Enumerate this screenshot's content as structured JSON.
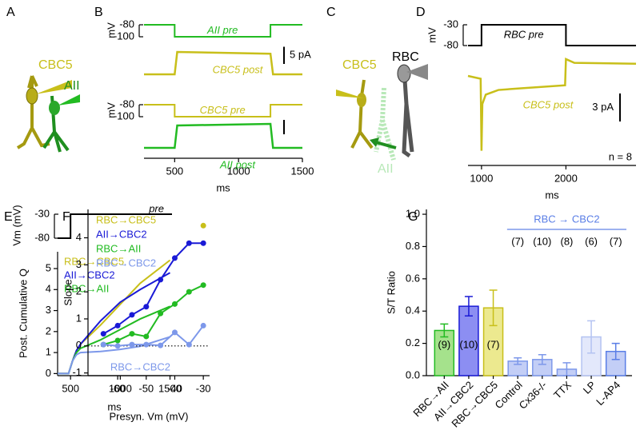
{
  "panel_labels": [
    "A",
    "B",
    "C",
    "D",
    "E",
    "F",
    "G"
  ],
  "diagram_A": {
    "labels": [
      "CBC5",
      "AII"
    ]
  },
  "diagram_C": {
    "labels": [
      "CBC5",
      "RBC",
      "AII"
    ]
  },
  "chart_data": [
    {
      "type": "trace",
      "ylabel": "mV",
      "xlim": [
        260,
        1500
      ],
      "stim": {
        "name": "AII pre",
        "color": "#22bb22",
        "x": [
          260,
          500,
          500,
          1250,
          1250,
          1500
        ],
        "values": [
          -80,
          -80,
          -100,
          -100,
          -80,
          -80
        ],
        "yticks": [
          -80,
          -100
        ]
      },
      "response": {
        "name": "CBC5 post",
        "color": "#c8bf1a",
        "x": [
          260,
          500,
          520,
          1250,
          1270,
          1500
        ],
        "values": [
          0,
          0,
          6.5,
          6,
          0,
          0
        ]
      },
      "scalebar": {
        "value": 5,
        "label": "5 pA"
      }
    },
    {
      "type": "trace",
      "ylabel": "mV",
      "xlim": [
        260,
        1500
      ],
      "xticks": [
        500,
        1000,
        1500
      ],
      "xlabel": "ms",
      "stim": {
        "name": "CBC5 pre",
        "color": "#c8bf1a",
        "x": [
          260,
          500,
          500,
          1250,
          1250,
          1500
        ],
        "values": [
          -80,
          -80,
          -100,
          -100,
          -80,
          -80
        ],
        "yticks": [
          -80,
          -100
        ]
      },
      "response": {
        "name": "AII post",
        "color": "#22bb22",
        "x": [
          260,
          500,
          520,
          1250,
          1270,
          1500
        ],
        "values": [
          0,
          0,
          7,
          7.5,
          0,
          0
        ]
      }
    },
    {
      "type": "trace",
      "ylabel": "mV",
      "xlim": [
        840,
        2830
      ],
      "xticks": [
        1000,
        2000
      ],
      "xlabel": "ms",
      "annotation": "n = 8",
      "stim": {
        "name": "RBC pre",
        "color": "#000000",
        "x": [
          840,
          1000,
          1000,
          2000,
          2000,
          2830
        ],
        "values": [
          -80,
          -80,
          -30,
          -30,
          -80,
          -80
        ],
        "yticks": [
          -30,
          -80
        ]
      },
      "response": {
        "name": "CBC5 post",
        "color": "#c8bf1a",
        "x": [
          840,
          990,
          1000,
          1010,
          1050,
          1200,
          1500,
          1990,
          2000,
          2100,
          2830
        ],
        "values": [
          0,
          -0.3,
          -8,
          -3,
          -2,
          -1.5,
          -1.3,
          -1,
          1.8,
          1.4,
          1.3
        ]
      },
      "scalebar": {
        "value": 3,
        "label": "3 pA"
      }
    },
    {
      "type": "line",
      "ylabel": "Post. Cumulative Q",
      "xlabel": "ms",
      "xlim": [
        370,
        1520
      ],
      "ylim": [
        -0.1,
        5.8
      ],
      "xticks": [
        500,
        1000,
        1500
      ],
      "yticks": [
        0,
        1,
        2,
        3,
        4,
        5
      ],
      "stim": {
        "name": "pre",
        "ylabel": "Vm (mV)",
        "color": "#000000",
        "x": [
          370,
          500,
          500,
          1520
        ],
        "values": [
          -80,
          -80,
          -30,
          -30
        ],
        "yticks": [
          -30,
          -80
        ]
      },
      "x": [
        370,
        480,
        520,
        560,
        600,
        800,
        1000,
        1200,
        1500
      ],
      "series": [
        {
          "name": "RBC→CBC5",
          "color": "#c8bf1a",
          "values": [
            0,
            0,
            0.6,
            1.1,
            1.4,
            2.3,
            3.3,
            4.3,
            5.4
          ]
        },
        {
          "name": "AII→CBC2",
          "color": "#1a1ad6",
          "values": [
            0,
            0,
            0.6,
            1.1,
            1.4,
            2.5,
            3.4,
            4.0,
            4.8
          ]
        },
        {
          "name": "RBC→AII",
          "color": "#22bb22",
          "values": [
            0,
            0,
            0.6,
            1.0,
            1.2,
            1.6,
            2.1,
            2.6,
            3.2
          ]
        },
        {
          "name": "RBC→CBC2",
          "color": "#7d98ea",
          "values": [
            0,
            0,
            0.6,
            0.9,
            1.0,
            1.05,
            1.15,
            1.3,
            1.75
          ]
        }
      ]
    },
    {
      "type": "line",
      "ylabel": "Slope",
      "xlabel": "Presyn. Vm (mV)",
      "xlim": [
        -70.4,
        -27.8
      ],
      "ylim": [
        -1.1,
        5.05
      ],
      "xticks": [
        -60,
        -50,
        -40,
        -30
      ],
      "yticks": [
        -1,
        0,
        1,
        2,
        3,
        4
      ],
      "markers": true,
      "hline": 0,
      "x": [
        -65,
        -60,
        -55,
        -50,
        -45,
        -40,
        -35,
        -30
      ],
      "series": [
        {
          "name": "RBC→CBC5",
          "color": "#c8bf1a",
          "values": [
            null,
            null,
            null,
            null,
            null,
            null,
            null,
            4.45
          ]
        },
        {
          "name": "AII→CBC2",
          "color": "#1a1ad6",
          "values": [
            0.45,
            0.75,
            1.15,
            1.45,
            2.45,
            3.25,
            3.8,
            3.8
          ]
        },
        {
          "name": "RBC→AII",
          "color": "#22bb22",
          "values": [
            0.05,
            0.2,
            0.45,
            0.35,
            1.2,
            1.55,
            2.0,
            2.25
          ]
        },
        {
          "name": "RBC→CBC2",
          "color": "#7d98ea",
          "values": [
            0.05,
            0.0,
            0.05,
            0.05,
            0.02,
            0.5,
            0.05,
            0.75
          ]
        }
      ]
    },
    {
      "type": "bar",
      "ylabel": "S/T Ratio",
      "ylim": [
        0,
        1.03
      ],
      "yticks": [
        {
          "value": 0,
          "label": "0.0"
        },
        {
          "value": 0.2,
          "label": "0.2"
        },
        {
          "value": 0.4,
          "label": "0.4"
        },
        {
          "value": 0.6,
          "label": "0.6"
        },
        {
          "value": 0.8,
          "label": "0.8"
        },
        {
          "value": 1,
          "label": "1.0"
        }
      ],
      "categories": [
        "RBC→AII",
        "AII→CBC2",
        "RBC→CBC5",
        "Control",
        "Cx36-/-",
        "TTX",
        "LP",
        "L-AP4"
      ],
      "values": [
        0.28,
        0.43,
        0.42,
        0.09,
        0.1,
        0.04,
        0.24,
        0.15
      ],
      "errors": [
        0.04,
        0.06,
        0.11,
        0.02,
        0.03,
        0.04,
        0.1,
        0.05
      ],
      "n_labels": [
        "(9)",
        "(10)",
        "(7)",
        "(7)",
        "(10)",
        "(8)",
        "(6)",
        "(7)"
      ],
      "group_label": "RBC → CBC2",
      "colors": [
        "#a5e28c",
        "#8c8ef2",
        "#ece98f",
        "#c3cef6",
        "#c3cef6",
        "#c3cef6",
        "#e3e8fb",
        "#c3cef6"
      ],
      "edgecolors": [
        "#22bb22",
        "#1a1ad6",
        "#c8bf1a",
        "#7d98ea",
        "#7d98ea",
        "#7d98ea",
        "#b4c3f2",
        "#5a7ee6"
      ]
    }
  ]
}
